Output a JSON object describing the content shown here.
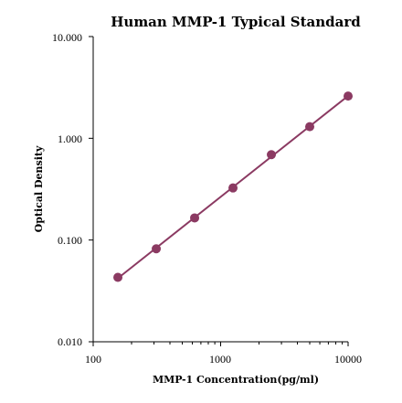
{
  "chart_data": {
    "type": "scatter",
    "title": "Human  MMP-1 Typical Standard",
    "xlabel": "MMP-1  Concentration(pg/ml)",
    "ylabel": "Optical Density",
    "xscale": "log",
    "yscale": "log",
    "xlim": [
      100,
      10000
    ],
    "ylim": [
      0.01,
      10
    ],
    "xticks": [
      "100",
      "1000",
      "10000"
    ],
    "yticks": [
      "10.000",
      "1.000",
      "0.100",
      "0.010"
    ],
    "grid": false,
    "legend": "none",
    "series": [
      {
        "x": [
          156.25,
          312.5,
          625,
          1250,
          2500,
          5000,
          10000
        ],
        "y": [
          0.043,
          0.082,
          0.165,
          0.325,
          0.69,
          1.3,
          2.6
        ],
        "color": "#8b3a62",
        "line": "fit"
      }
    ]
  }
}
